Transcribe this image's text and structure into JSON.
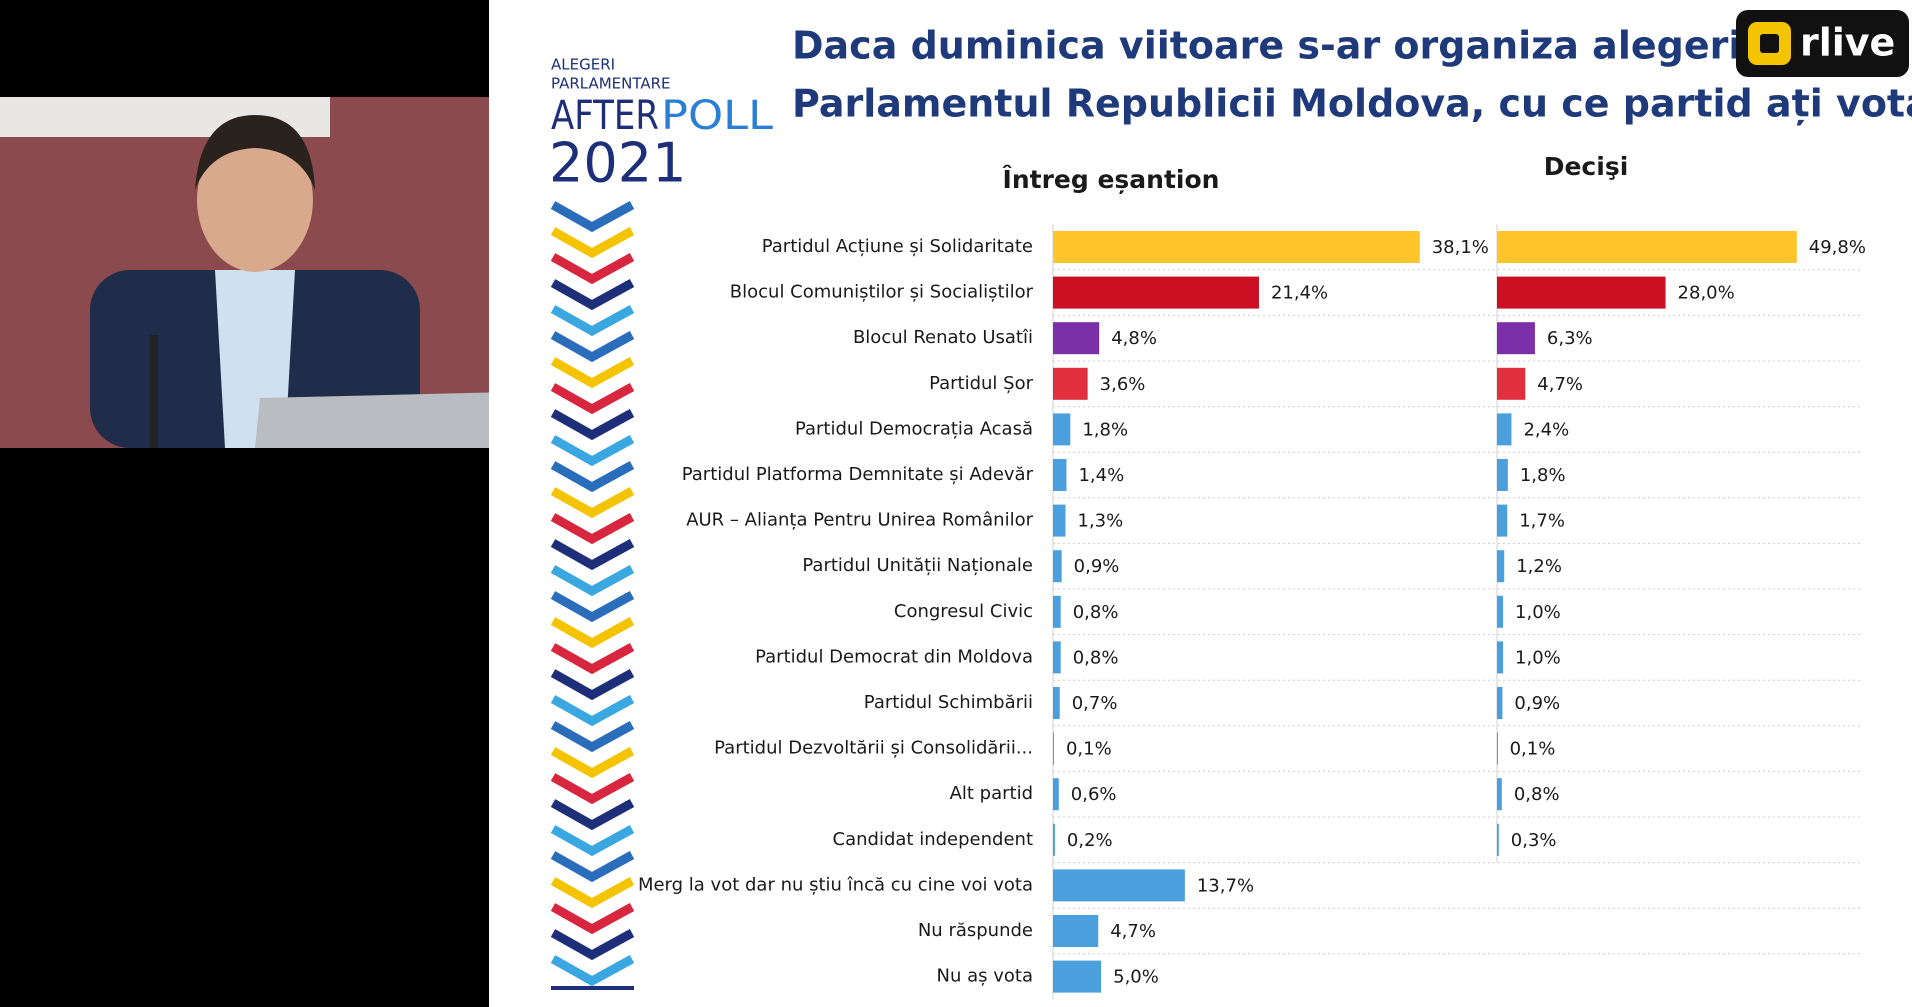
{
  "title_lines": [
    "Daca duminica viitoare s-ar organiza alegeri pe",
    "Parlamentul Republicii Moldova, cu ce partid ați vota?"
  ],
  "logo": {
    "top": "ALEGERI",
    "middle": "PARLAMENTARE",
    "after": "AFTER",
    "poll": "POLL",
    "year": "2021"
  },
  "broadcaster": "rlive",
  "chart_data": [
    {
      "type": "bar",
      "orientation": "horizontal",
      "title": "Întreg eșantion",
      "categories": [
        "Partidul Acțiune și Solidaritate",
        "Blocul Comuniștilor și Socialiștilor",
        "Blocul Renato Usatîi",
        "Partidul Șor",
        "Partidul Democrația Acasă",
        "Partidul Platforma Demnitate și Adevăr",
        "AUR – Alianța Pentru Unirea Românilor",
        "Partidul Unității Naționale",
        "Congresul Civic",
        "Partidul Democrat din Moldova",
        "Partidul Schimbării",
        "Partidul Dezvoltării și Consolidării...",
        "Alt partid",
        "Candidat independent",
        "Merg la vot dar nu știu încă cu cine voi vota",
        "Nu răspunde",
        "Nu aș vota"
      ],
      "values": [
        38.1,
        21.4,
        4.8,
        3.6,
        1.8,
        1.4,
        1.3,
        0.9,
        0.8,
        0.8,
        0.7,
        0.1,
        0.6,
        0.2,
        13.7,
        4.7,
        5.0
      ],
      "value_labels": [
        "38,1%",
        "21,4%",
        "4,8%",
        "3,6%",
        "1,8%",
        "1,4%",
        "1,3%",
        "0,9%",
        "0,8%",
        "0,8%",
        "0,7%",
        "0,1%",
        "0,6%",
        "0,2%",
        "13,7%",
        "4,7%",
        "5,0%"
      ],
      "colors": [
        "#ffc52b",
        "#cc0f23",
        "#7b2fa8",
        "#e0303f",
        "#4b9fdc",
        "#4b9fdc",
        "#4b9fdc",
        "#4b9fdc",
        "#4b9fdc",
        "#4b9fdc",
        "#4b9fdc",
        "#4b9fdc",
        "#4b9fdc",
        "#4b9fdc",
        "#4b9fdc",
        "#4b9fdc",
        "#4b9fdc"
      ],
      "xlim": [
        0,
        40
      ]
    },
    {
      "type": "bar",
      "orientation": "horizontal",
      "title": "Decişi",
      "values": [
        49.8,
        28.0,
        6.3,
        4.7,
        2.4,
        1.8,
        1.7,
        1.2,
        1.0,
        1.0,
        0.9,
        0.1,
        0.8,
        0.3
      ],
      "value_labels": [
        "49,8%",
        "28,0%",
        "6,3%",
        "4,7%",
        "2,4%",
        "1,8%",
        "1,7%",
        "1,2%",
        "1,0%",
        "1,0%",
        "0,9%",
        "0,1%",
        "0,8%",
        "0,3%"
      ],
      "colors": [
        "#ffc52b",
        "#cc0f23",
        "#7b2fa8",
        "#e0303f",
        "#4b9fdc",
        "#4b9fdc",
        "#4b9fdc",
        "#4b9fdc",
        "#4b9fdc",
        "#4b9fdc",
        "#4b9fdc",
        "#4b9fdc",
        "#4b9fdc",
        "#4b9fdc"
      ],
      "xlim": [
        0,
        50
      ]
    }
  ]
}
